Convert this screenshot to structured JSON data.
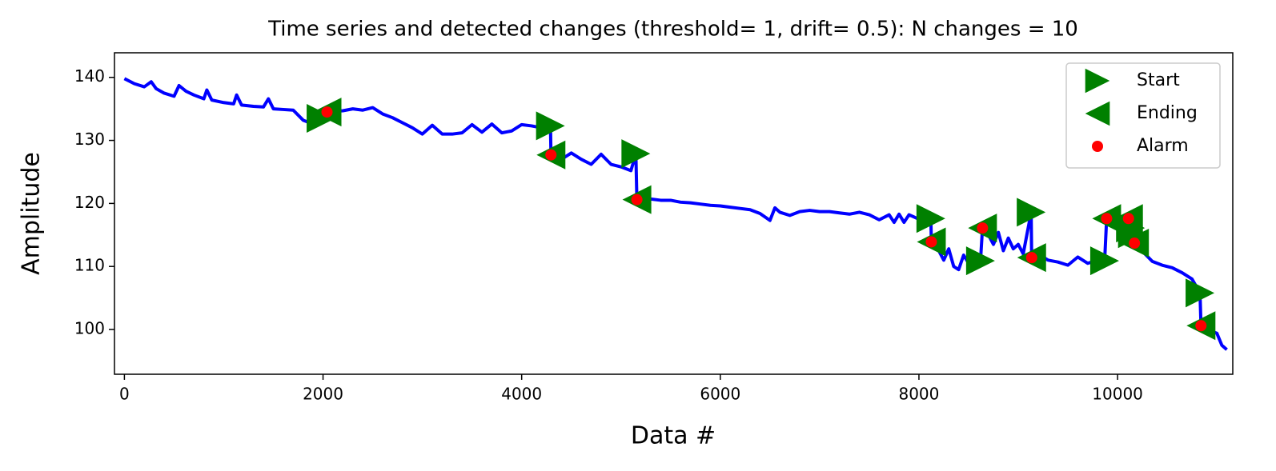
{
  "chart_data": {
    "type": "line",
    "title": "Time series and detected changes (threshold= 1, drift= 0.5): N changes = 10",
    "xlabel": "Data #",
    "ylabel": "Amplitude",
    "color": "#0000ff",
    "xlim": [
      -100,
      11160
    ],
    "ylim": [
      92.9,
      143.9
    ],
    "xticks": [
      0,
      2000,
      4000,
      6000,
      8000,
      10000
    ],
    "yticks": [
      100,
      110,
      120,
      130,
      140
    ],
    "grid": false,
    "legend": "upper right",
    "x": [
      0,
      100,
      200,
      270,
      320,
      400,
      500,
      550,
      620,
      700,
      800,
      830,
      880,
      1000,
      1100,
      1130,
      1180,
      1300,
      1400,
      1450,
      1500,
      1600,
      1700,
      1800,
      1900,
      1980,
      2040,
      2100,
      2200,
      2300,
      2400,
      2500,
      2600,
      2700,
      2800,
      2900,
      3000,
      3100,
      3200,
      3300,
      3400,
      3500,
      3600,
      3700,
      3800,
      3900,
      4000,
      4100,
      4200,
      4290,
      4295,
      4400,
      4500,
      4600,
      4700,
      4800,
      4900,
      5000,
      5100,
      5150,
      5160,
      5300,
      5400,
      5500,
      5600,
      5700,
      5800,
      5900,
      6000,
      6100,
      6200,
      6300,
      6400,
      6500,
      6550,
      6600,
      6700,
      6800,
      6900,
      7000,
      7100,
      7200,
      7300,
      7400,
      7500,
      7600,
      7700,
      7750,
      7800,
      7850,
      7900,
      8000,
      8050,
      8120,
      8125,
      8200,
      8250,
      8300,
      8350,
      8400,
      8450,
      8500,
      8550,
      8620,
      8640,
      8700,
      8750,
      8800,
      8850,
      8900,
      8950,
      9000,
      9050,
      9130,
      9135,
      9200,
      9300,
      9400,
      9500,
      9600,
      9700,
      9800,
      9870,
      9890,
      9950,
      10000,
      10050,
      10110,
      10130,
      10150,
      10170,
      10250,
      10350,
      10450,
      10550,
      10650,
      10750,
      10830,
      10840,
      10900,
      10950,
      11000,
      11050,
      11100
    ],
    "values": [
      139.8,
      139,
      138.5,
      139.3,
      138.2,
      137.5,
      137,
      138.7,
      137.8,
      137.2,
      136.6,
      138,
      136.4,
      136,
      135.8,
      137.2,
      135.6,
      135.4,
      135.3,
      136.6,
      135,
      134.9,
      134.8,
      133.2,
      132.6,
      133.5,
      134.5,
      134.6,
      134.7,
      135,
      134.8,
      135.2,
      134.2,
      133.6,
      132.8,
      132,
      131,
      132.4,
      131,
      131,
      131.2,
      132.5,
      131.3,
      132.6,
      131.2,
      131.5,
      132.5,
      132.3,
      132,
      132.3,
      127.7,
      127,
      128,
      127,
      126.2,
      127.8,
      126.2,
      125.8,
      125.2,
      127.9,
      120.6,
      120.7,
      120.5,
      120.5,
      120.2,
      120.1,
      119.9,
      119.7,
      119.6,
      119.4,
      119.2,
      119,
      118.4,
      117.3,
      119.3,
      118.6,
      118.1,
      118.7,
      118.9,
      118.7,
      118.7,
      118.5,
      118.3,
      118.6,
      118.2,
      117.4,
      118.2,
      117,
      118.3,
      117,
      118.2,
      117.5,
      118,
      117.6,
      113.9,
      112.5,
      111,
      112.8,
      110,
      109.5,
      111.8,
      110.5,
      111.5,
      110.9,
      116.1,
      115,
      113.5,
      115.4,
      112.5,
      114.5,
      112.8,
      113.5,
      112,
      118.6,
      111.4,
      112,
      111,
      110.7,
      110.2,
      111.5,
      110.5,
      111,
      110.9,
      117.6,
      116.8,
      116,
      117,
      117.6,
      116.1,
      115.2,
      113.7,
      112.4,
      110.8,
      110.2,
      109.8,
      109,
      108,
      105.8,
      100.6,
      100.2,
      99.7,
      99.4,
      97.5,
      96.8
    ],
    "markers": [
      {
        "name": "Start",
        "color": "#008000",
        "marker": "triangle-right",
        "x": [
          1980,
          4290,
          5150,
          8120,
          8620,
          9130,
          9870,
          10130,
          10150,
          10830
        ],
        "values": [
          133.5,
          132.3,
          127.9,
          117.6,
          110.9,
          118.6,
          110.9,
          116.1,
          115.2,
          105.8
        ]
      },
      {
        "name": "Ending",
        "color": "#008000",
        "marker": "triangle-left",
        "x": [
          2040,
          4295,
          5160,
          8125,
          8640,
          9135,
          9890,
          10110,
          10170,
          10840
        ],
        "values": [
          134.5,
          127.7,
          120.6,
          113.9,
          116.1,
          111.4,
          117.6,
          117.6,
          113.7,
          100.6
        ]
      },
      {
        "name": "Alarm",
        "color": "#ff0000",
        "marker": "circle",
        "x": [
          2040,
          4295,
          5160,
          8125,
          8640,
          9135,
          9890,
          10110,
          10170,
          10840
        ],
        "values": [
          134.5,
          127.7,
          120.6,
          113.9,
          116.1,
          111.4,
          117.6,
          117.6,
          113.7,
          100.6
        ]
      }
    ]
  }
}
